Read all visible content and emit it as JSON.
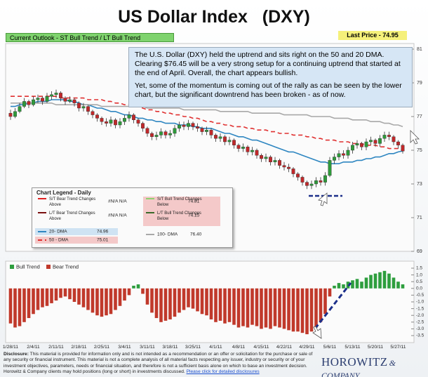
{
  "header": {
    "title": "US Dollar Index   (DXY)",
    "outlook": "Current Outlook - ST Bull Trend / LT Bull Trend",
    "last_price": "Last Price - 74.95"
  },
  "comment": [
    "The U.S. Dollar (DXY) held the uptrend and sits right on the 50 and 20 DMA.  Clearing $76.45 will be a very strong setup for a continuing uptrend that started at the end of April. Overall, the chart appears bullish.",
    "Yet, some of the momentum is coming out of the rally as can be seen by the lower chart, but the significant downtrend has been broken - as of now."
  ],
  "chart_data": {
    "type": "candlestick",
    "up_color": "#2e9a3a",
    "down_color": "#c0282a",
    "categories": [
      "1/28/11",
      null,
      null,
      null,
      null,
      "2/4/11",
      null,
      null,
      null,
      null,
      "2/11/11",
      null,
      null,
      null,
      null,
      "2/18/11",
      null,
      null,
      null,
      null,
      "2/25/11",
      null,
      null,
      null,
      null,
      "3/4/11",
      null,
      null,
      null,
      null,
      "3/11/11",
      null,
      null,
      null,
      null,
      "3/18/11",
      null,
      null,
      null,
      null,
      "3/25/11",
      null,
      null,
      null,
      null,
      "4/1/11",
      null,
      null,
      null,
      null,
      "4/8/11",
      null,
      null,
      null,
      null,
      "4/15/11",
      null,
      null,
      null,
      null,
      "4/22/11",
      null,
      null,
      null,
      null,
      "4/29/11",
      null,
      null,
      null,
      null,
      "5/6/11",
      null,
      null,
      null,
      null,
      "5/13/11",
      null,
      null,
      null,
      null,
      "5/20/11",
      null,
      null,
      null,
      null,
      "5/27/11",
      null
    ],
    "open": [
      77.2,
      77.0,
      77.3,
      77.6,
      77.9,
      77.7,
      78.0,
      78.1,
      77.9,
      78.2,
      78.3,
      78.4,
      78.1,
      77.9,
      78.0,
      77.8,
      77.5,
      77.6,
      77.3,
      77.1,
      76.9,
      76.7,
      76.6,
      76.8,
      76.5,
      76.7,
      76.9,
      77.1,
      76.8,
      76.6,
      76.3,
      76.0,
      75.8,
      75.9,
      76.1,
      75.9,
      76.0,
      76.3,
      76.5,
      76.4,
      76.6,
      76.4,
      76.3,
      76.1,
      76.2,
      75.9,
      75.7,
      75.8,
      75.5,
      75.6,
      75.3,
      75.1,
      75.2,
      74.9,
      75.0,
      74.7,
      74.5,
      74.6,
      74.3,
      74.4,
      74.1,
      74.0,
      73.9,
      73.6,
      73.4,
      73.1,
      72.9,
      73.0,
      73.2,
      73.1,
      73.5,
      74.4,
      74.6,
      74.8,
      74.7,
      75.0,
      75.3,
      75.4,
      75.2,
      75.5,
      75.6,
      75.4,
      75.7,
      75.9,
      75.8,
      75.5,
      75.3
    ],
    "high": [
      77.4,
      77.5,
      77.8,
      78.1,
      78.0,
      78.2,
      78.3,
      78.2,
      78.4,
      78.5,
      78.6,
      78.5,
      78.2,
      78.2,
      78.1,
      77.9,
      77.8,
      77.7,
      77.4,
      77.2,
      77.0,
      76.9,
      77.0,
      76.9,
      76.9,
      77.1,
      77.3,
      77.2,
      76.9,
      76.7,
      76.4,
      76.1,
      76.1,
      76.3,
      76.2,
      76.2,
      76.5,
      76.7,
      76.7,
      76.8,
      76.7,
      76.6,
      76.4,
      76.4,
      76.3,
      76.0,
      76.0,
      75.9,
      75.8,
      75.7,
      75.4,
      75.4,
      75.3,
      75.2,
      75.1,
      74.8,
      74.8,
      74.7,
      74.6,
      74.5,
      74.3,
      74.2,
      74.0,
      73.7,
      73.5,
      73.2,
      73.2,
      73.4,
      73.4,
      73.7,
      74.6,
      74.8,
      75.0,
      75.0,
      75.2,
      75.5,
      75.6,
      75.5,
      75.7,
      75.8,
      75.7,
      75.9,
      76.1,
      76.1,
      75.9,
      75.6,
      75.4
    ],
    "low": [
      76.8,
      76.9,
      77.2,
      77.5,
      77.5,
      77.6,
      77.8,
      77.7,
      77.8,
      78.0,
      78.1,
      77.9,
      77.7,
      77.8,
      77.6,
      77.3,
      77.3,
      77.1,
      76.9,
      76.7,
      76.5,
      76.4,
      76.4,
      76.3,
      76.3,
      76.5,
      76.7,
      76.6,
      76.4,
      76.1,
      75.8,
      75.6,
      75.6,
      75.7,
      75.7,
      75.7,
      75.8,
      76.1,
      76.2,
      76.2,
      76.2,
      76.1,
      75.9,
      75.9,
      75.7,
      75.5,
      75.5,
      75.3,
      75.3,
      75.1,
      74.9,
      74.9,
      74.7,
      74.7,
      74.5,
      74.3,
      74.3,
      74.1,
      74.1,
      73.9,
      73.8,
      73.7,
      73.4,
      73.2,
      72.9,
      72.7,
      72.7,
      72.8,
      72.9,
      72.9,
      73.4,
      74.2,
      74.4,
      74.5,
      74.5,
      74.8,
      75.1,
      75.0,
      75.0,
      75.3,
      75.2,
      75.2,
      75.5,
      75.6,
      75.3,
      75.1,
      74.8
    ],
    "close": [
      77.0,
      77.3,
      77.6,
      77.9,
      77.7,
      78.0,
      78.1,
      77.9,
      78.2,
      78.3,
      78.4,
      78.1,
      77.9,
      78.0,
      77.8,
      77.5,
      77.6,
      77.3,
      77.1,
      76.9,
      76.7,
      76.6,
      76.8,
      76.5,
      76.7,
      76.9,
      77.1,
      76.8,
      76.6,
      76.3,
      76.0,
      75.8,
      75.9,
      76.1,
      75.9,
      76.0,
      76.3,
      76.5,
      76.4,
      76.6,
      76.4,
      76.3,
      76.1,
      76.2,
      75.9,
      75.7,
      75.8,
      75.5,
      75.6,
      75.3,
      75.1,
      75.2,
      74.9,
      75.0,
      74.7,
      74.5,
      74.6,
      74.3,
      74.4,
      74.1,
      74.0,
      73.9,
      73.6,
      73.4,
      73.1,
      72.9,
      73.0,
      73.2,
      73.1,
      73.5,
      74.4,
      74.6,
      74.8,
      74.7,
      75.0,
      75.3,
      75.4,
      75.2,
      75.5,
      75.6,
      75.4,
      75.7,
      75.9,
      75.8,
      75.5,
      75.3,
      74.95
    ],
    "series": [
      {
        "name": "20- DMA",
        "color": "#2e86c1",
        "style": "solid",
        "label": "74.96",
        "values": [
          77.6,
          77.6,
          77.7,
          77.7,
          77.8,
          77.8,
          77.9,
          77.9,
          77.9,
          78.0,
          78.0,
          78.0,
          78.0,
          77.9,
          77.9,
          77.8,
          77.7,
          77.7,
          77.6,
          77.5,
          77.5,
          77.4,
          77.3,
          77.3,
          77.2,
          77.1,
          77.1,
          77.0,
          76.9,
          76.9,
          76.8,
          76.8,
          76.7,
          76.7,
          76.6,
          76.6,
          76.6,
          76.5,
          76.5,
          76.5,
          76.4,
          76.4,
          76.3,
          76.3,
          76.3,
          76.2,
          76.1,
          76.0,
          76.0,
          75.9,
          75.8,
          75.8,
          75.7,
          75.6,
          75.6,
          75.5,
          75.4,
          75.3,
          75.2,
          75.1,
          75.0,
          74.9,
          74.9,
          74.8,
          74.7,
          74.6,
          74.5,
          74.4,
          74.3,
          74.3,
          74.2,
          74.2,
          74.2,
          74.3,
          74.3,
          74.3,
          74.4,
          74.4,
          74.5,
          74.5,
          74.6,
          74.6,
          74.7,
          74.8,
          74.8,
          74.9,
          74.96
        ]
      },
      {
        "name": "50 - DMA",
        "color": "#e03030",
        "style": "dashed",
        "label": "75.01",
        "values": [
          78.2,
          78.2,
          78.2,
          78.2,
          78.2,
          78.2,
          78.2,
          78.2,
          78.2,
          78.2,
          78.2,
          78.1,
          78.1,
          78.1,
          78.1,
          78.1,
          78.1,
          78.0,
          78.0,
          78.0,
          78.0,
          77.9,
          77.9,
          77.8,
          77.8,
          77.7,
          77.7,
          77.6,
          77.6,
          77.5,
          77.4,
          77.4,
          77.3,
          77.3,
          77.2,
          77.2,
          77.1,
          77.1,
          77.0,
          77.0,
          76.9,
          76.9,
          76.8,
          76.7,
          76.7,
          76.6,
          76.6,
          76.5,
          76.5,
          76.4,
          76.4,
          76.4,
          76.3,
          76.3,
          76.2,
          76.2,
          76.2,
          76.1,
          76.1,
          76.0,
          76.0,
          76.0,
          75.9,
          75.9,
          75.9,
          75.8,
          75.8,
          75.7,
          75.7,
          75.6,
          75.6,
          75.6,
          75.5,
          75.5,
          75.5,
          75.4,
          75.4,
          75.4,
          75.3,
          75.3,
          75.3,
          75.2,
          75.2,
          75.1,
          75.1,
          75.1,
          75.01
        ]
      },
      {
        "name": "100- DMA",
        "color": "#a8a8a8",
        "style": "solid",
        "label": "76.40",
        "values": [
          77.8,
          77.8,
          77.8,
          77.8,
          77.8,
          77.8,
          77.8,
          77.8,
          77.8,
          77.8,
          77.7,
          77.7,
          77.7,
          77.7,
          77.7,
          77.7,
          77.7,
          77.7,
          77.7,
          77.7,
          77.6,
          77.6,
          77.6,
          77.6,
          77.6,
          77.6,
          77.6,
          77.6,
          77.6,
          77.6,
          77.5,
          77.5,
          77.5,
          77.5,
          77.5,
          77.5,
          77.5,
          77.5,
          77.4,
          77.4,
          77.4,
          77.4,
          77.4,
          77.4,
          77.4,
          77.4,
          77.3,
          77.3,
          77.3,
          77.3,
          77.3,
          77.3,
          77.3,
          77.2,
          77.2,
          77.2,
          77.2,
          77.2,
          77.2,
          77.2,
          77.1,
          77.1,
          77.1,
          77.1,
          77.1,
          77.1,
          77.0,
          77.0,
          77.0,
          77.0,
          77.0,
          76.9,
          76.9,
          76.9,
          76.9,
          76.8,
          76.8,
          76.8,
          76.8,
          76.7,
          76.7,
          76.7,
          76.6,
          76.6,
          76.5,
          76.5,
          76.4
        ]
      }
    ],
    "ylim": [
      69,
      81
    ],
    "yticks": [
      69,
      71,
      73,
      75,
      77,
      79,
      81
    ],
    "legend": {
      "title": "Chart Legend - Daily",
      "items": [
        {
          "name": "S/T Bear Trend Changes Above",
          "value": "#N/A N/A",
          "color": "#e02020"
        },
        {
          "name": "L/T Bear Trend Changes Above",
          "value": "#N/A N/A",
          "color": "#7a1010"
        },
        {
          "name": "S/T Bull Trend Changes Below",
          "value": "74.81",
          "color": "#8fd070"
        },
        {
          "name": "L/T Bull Trend Changes Below",
          "value": "74.15",
          "color": "#3a6a2a"
        }
      ]
    },
    "indicator": {
      "type": "bar",
      "legend": [
        {
          "name": "Bull Trend",
          "color": "#2e9e3e"
        },
        {
          "name": "Bear Trend",
          "color": "#c0392b"
        }
      ],
      "values": [
        -2.6,
        -2.9,
        -2.8,
        -2.5,
        -2.2,
        -1.9,
        -1.6,
        -1.4,
        -1.3,
        -1.1,
        -0.9,
        -0.7,
        -0.6,
        -0.8,
        -1.0,
        -1.2,
        -1.4,
        -1.6,
        -1.8,
        -2.0,
        -2.1,
        -2.0,
        -1.9,
        -1.6,
        -1.3,
        -0.9,
        -0.5,
        0.2,
        0.3,
        -0.4,
        -1.2,
        -1.8,
        -2.2,
        -2.5,
        -2.4,
        -2.3,
        -2.1,
        -1.8,
        -1.6,
        -1.4,
        -1.5,
        -1.7,
        -1.9,
        -2.0,
        -2.3,
        -2.5,
        -2.4,
        -2.6,
        -2.5,
        -2.7,
        -2.9,
        -2.8,
        -2.9,
        -2.7,
        -2.8,
        -3.0,
        -2.9,
        -3.0,
        -2.8,
        -2.9,
        -3.0,
        -3.1,
        -3.2,
        -3.2,
        -3.3,
        -3.4,
        -3.2,
        -2.9,
        -2.5,
        -1.9,
        -0.6,
        0.2,
        0.4,
        0.3,
        0.5,
        0.6,
        0.7,
        0.5,
        0.8,
        1.0,
        1.1,
        1.2,
        1.3,
        1.1,
        0.8,
        0.5,
        0.3
      ],
      "ylim": [
        -3.5,
        1.5
      ],
      "yticks": [
        1.5,
        {
          "value": 1,
          "label": "1.0"
        },
        0.5,
        {
          "value": 0,
          "label": "0.0"
        },
        -0.5,
        {
          "value": -1,
          "label": "-1.0"
        },
        -1.5,
        {
          "value": -2,
          "label": "-2.0"
        },
        -2.5,
        {
          "value": -3,
          "label": "-3.0"
        },
        -3.5
      ]
    }
  },
  "disclosure": {
    "label": "Disclosure:",
    "text": "This material is provided for information only and is not intended as a recommendation or an offer or solicitation  for the purchase or sale of any security or financial instrument. This material is not a complete analysis of all material facts respecting any issuer, industry or security or of your investment objectives, parameters, needs or financial situation, and therefore is not a sufficient basis alone on which to base an investment decision. Horowitz  & Company clients may hold positions (long or short) in investments discussed.",
    "link": "Please click for detailed disclosures"
  },
  "logo": {
    "name": "HOROWITZ",
    "suffix": "& COMPANY"
  }
}
